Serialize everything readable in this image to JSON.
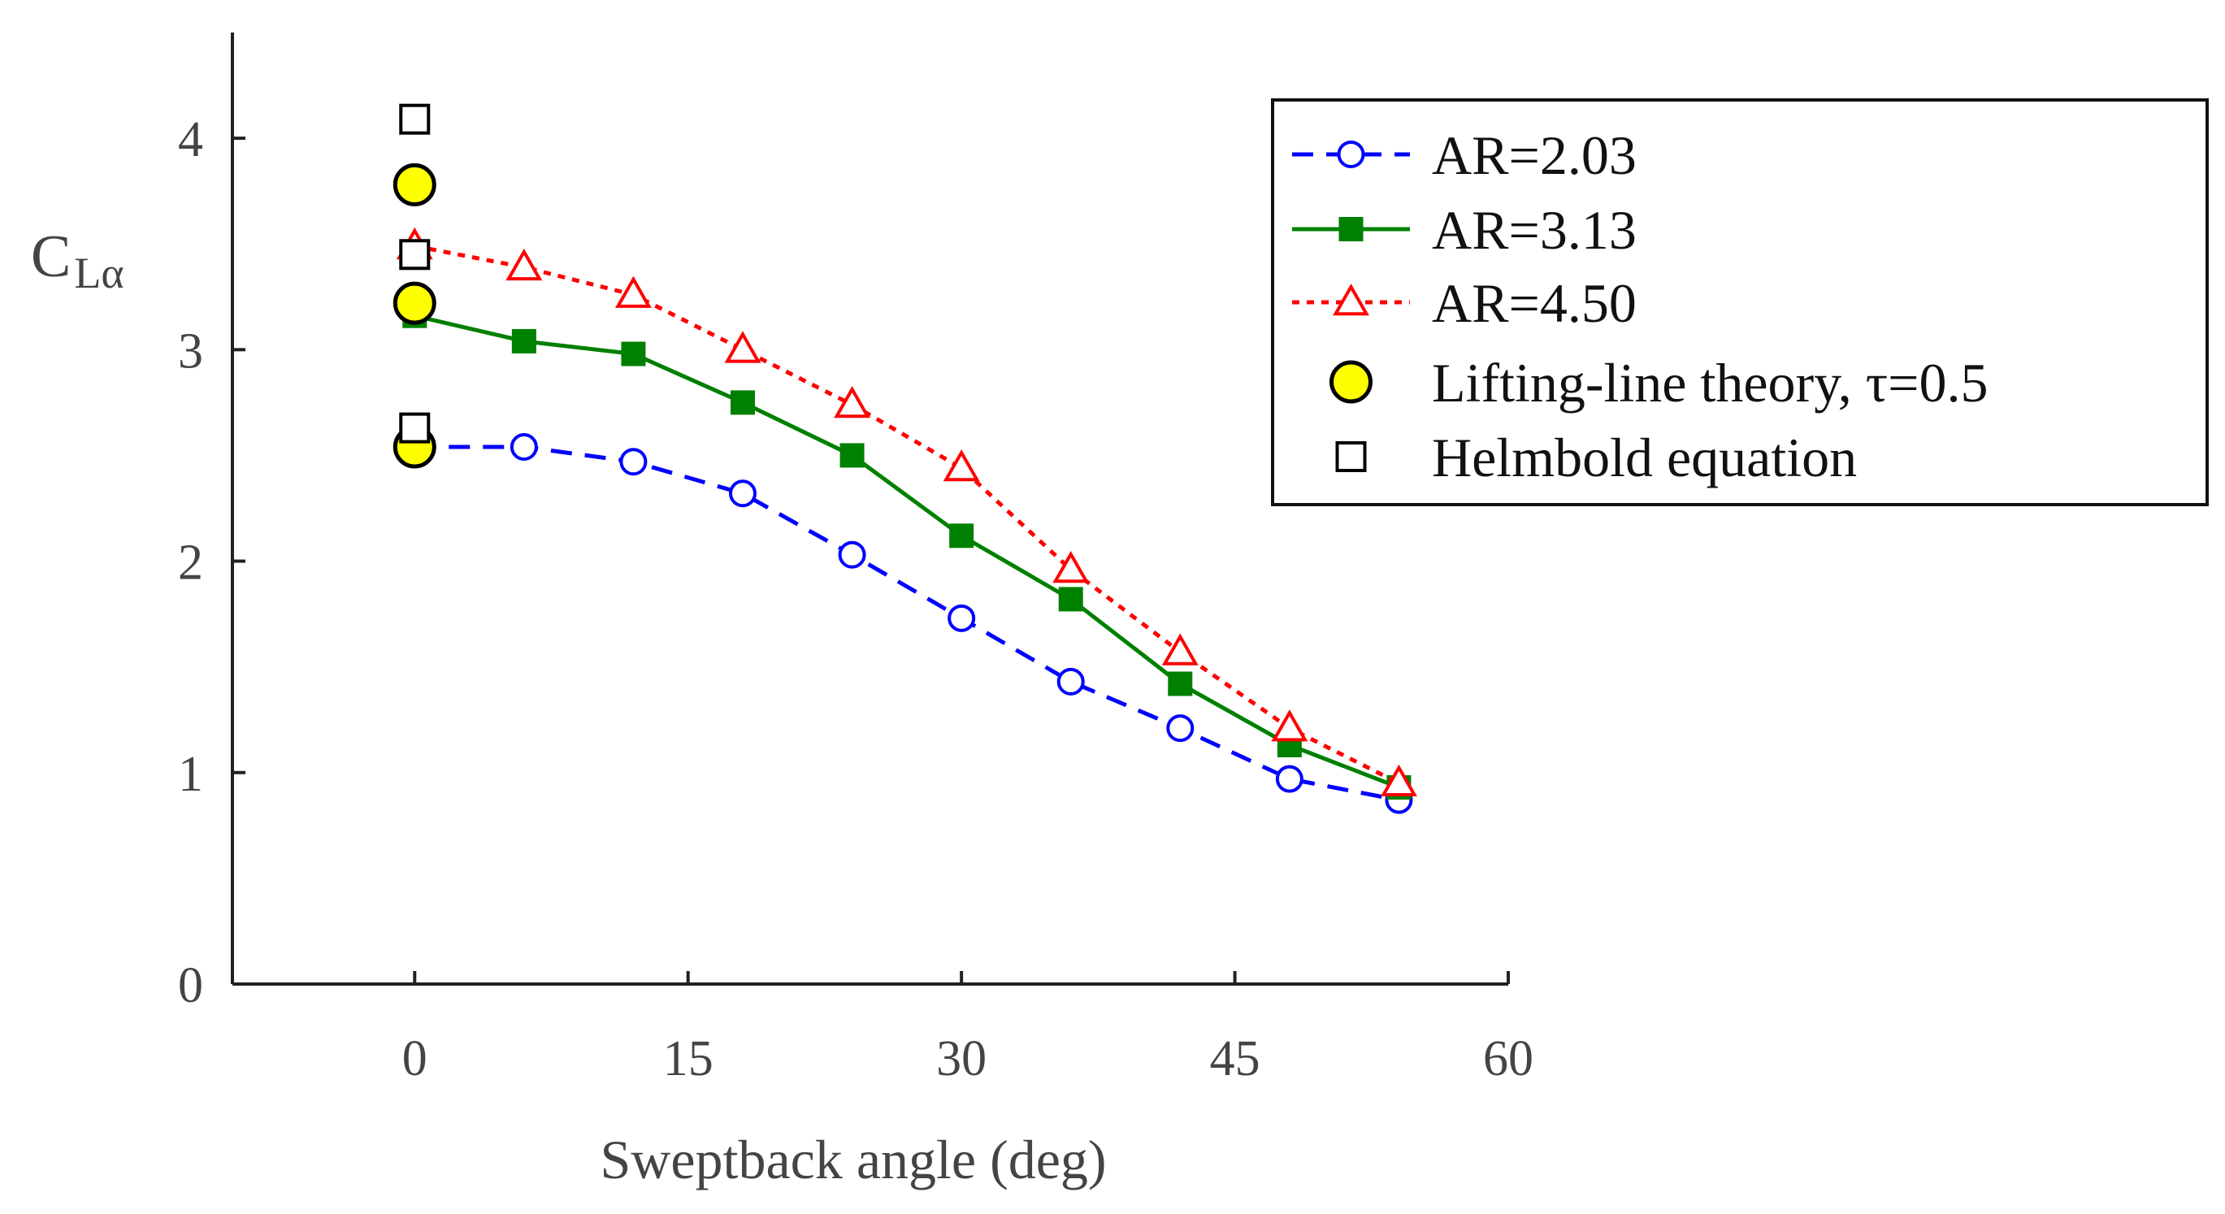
{
  "chart_data": {
    "type": "line",
    "title": "",
    "xlabel": "Sweptback angle (deg)",
    "ylabel": "C",
    "ylabel_sub": "Lα",
    "xlim": [
      -10,
      60
    ],
    "ylim": [
      0,
      4.5
    ],
    "xticks": [
      0,
      15,
      30,
      45,
      60
    ],
    "yticks": [
      0,
      1,
      2,
      3,
      4
    ],
    "grid": false,
    "legend_position": "top-right",
    "series": [
      {
        "name": "AR=2.03",
        "color": "#0000ff",
        "line_style": "dashed",
        "marker": "open-circle",
        "x": [
          0,
          6,
          12,
          18,
          24,
          30,
          36,
          42,
          48,
          54
        ],
        "values": [
          2.54,
          2.54,
          2.47,
          2.32,
          2.03,
          1.73,
          1.43,
          1.21,
          0.97,
          0.87
        ]
      },
      {
        "name": "AR=3.13",
        "color": "#008000",
        "line_style": "solid",
        "marker": "filled-square",
        "x": [
          0,
          6,
          12,
          18,
          24,
          30,
          36,
          42,
          48,
          54
        ],
        "values": [
          3.16,
          3.04,
          2.98,
          2.75,
          2.5,
          2.12,
          1.82,
          1.42,
          1.13,
          0.93
        ]
      },
      {
        "name": "AR=4.50",
        "color": "#ff0000",
        "line_style": "dotted",
        "marker": "open-triangle",
        "x": [
          0,
          6,
          12,
          18,
          24,
          30,
          36,
          42,
          48,
          54
        ],
        "values": [
          3.49,
          3.39,
          3.26,
          3.0,
          2.74,
          2.44,
          1.96,
          1.57,
          1.21,
          0.95
        ]
      },
      {
        "name": "Lifting-line theory, τ=0.5",
        "color": "#ffff00",
        "line_style": "none",
        "marker": "filled-circle",
        "x": [
          0,
          0,
          0
        ],
        "values": [
          3.78,
          3.22,
          2.54
        ]
      },
      {
        "name": "Helmbold equation",
        "color": "#000000",
        "line_style": "none",
        "marker": "open-square",
        "x": [
          0,
          0,
          0
        ],
        "values": [
          4.09,
          3.45,
          2.63
        ]
      }
    ]
  }
}
